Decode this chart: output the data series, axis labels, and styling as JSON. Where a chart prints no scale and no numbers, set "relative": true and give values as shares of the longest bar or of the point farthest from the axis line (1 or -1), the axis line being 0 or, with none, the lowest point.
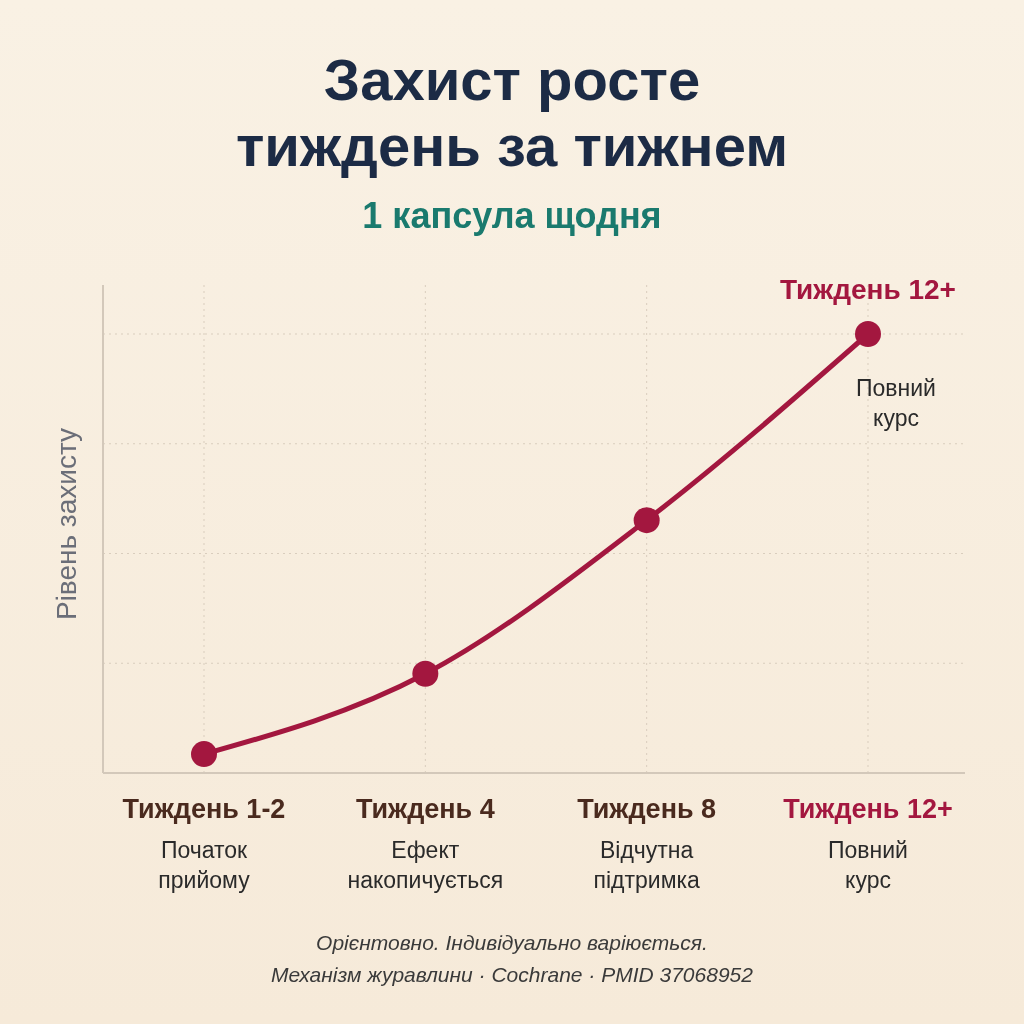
{
  "chart_data": {
    "type": "line",
    "title": "Захист росте\nтиждень за тижнем",
    "subtitle": "1 капсула щодня",
    "ylabel": "Рівень захисту",
    "relative": true,
    "grid": true,
    "marker": "circle",
    "categories": [
      "Тиждень 1-2\nПочаток\nприйому",
      "Тиждень 4\nЕфект\nнакопичується",
      "Тиждень 8\nВідчутна\nпідтримка",
      "Тиждень 12+\nПовний\nкурс"
    ],
    "series": [
      {
        "color": "#a3173f",
        "values": [
          0.043,
          0.226,
          0.576,
          1
        ]
      }
    ],
    "annotations": [
      {
        "text": "Тиждень 12+",
        "x": "Тиждень 12+\nПовний\nкурс",
        "y": 1
      },
      {
        "text": "Повний\nкурс",
        "x": "Тиждень 12+\nПовний\nкурс",
        "y": 1
      },
      "Орієнтовно. Індивідуально варіюється.",
      "Механізм журавлини · Cochrane · PMID 37068952"
    ]
  }
}
